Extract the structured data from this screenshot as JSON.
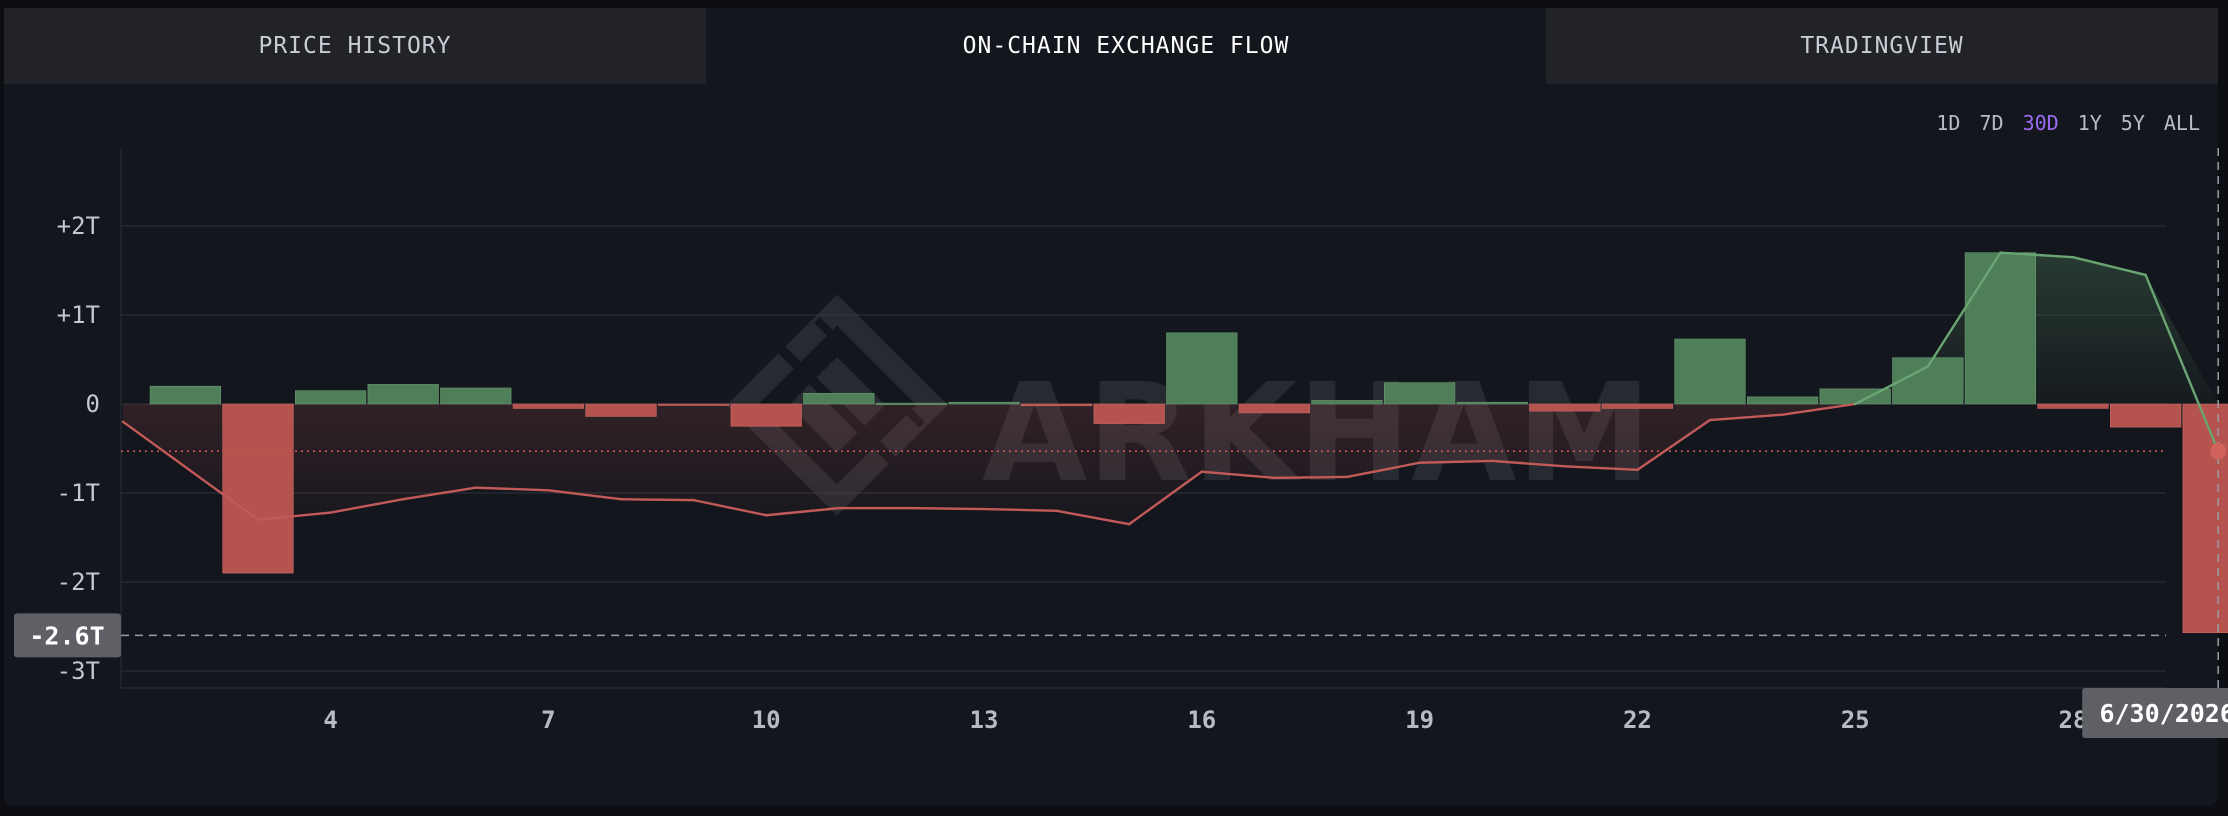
{
  "tabs": [
    {
      "label": "PRICE HISTORY",
      "active": false
    },
    {
      "label": "ON-CHAIN EXCHANGE FLOW",
      "active": true
    },
    {
      "label": "TRADINGVIEW",
      "active": false
    }
  ],
  "ranges": [
    {
      "label": "1D",
      "active": false
    },
    {
      "label": "7D",
      "active": false
    },
    {
      "label": "30D",
      "active": true
    },
    {
      "label": "1Y",
      "active": false
    },
    {
      "label": "5Y",
      "active": false
    },
    {
      "label": "ALL",
      "active": false
    }
  ],
  "watermark": "ARKHAM",
  "colors": {
    "inflow_bar": "#4f7f58",
    "outflow_bar": "#b5534f",
    "line_positive": "#69a572",
    "line_negative": "#c25a57",
    "accent_range": "#9b6bf2"
  },
  "cursor": {
    "y_label": "-2.6T",
    "y_value": -2.6,
    "x_label": "6/30/2026",
    "x_day": 30,
    "line_value": -0.53
  },
  "chart_data": {
    "type": "bar",
    "xlabel": "",
    "ylabel": "",
    "ylim": [
      -3.2,
      2.9
    ],
    "y_ticks": [
      2,
      1,
      0,
      -1,
      -2,
      -3
    ],
    "y_tick_labels": [
      "+2T",
      "+1T",
      "0",
      "-1T",
      "-2T",
      "-3T"
    ],
    "x_ticks": [
      4,
      7,
      10,
      13,
      16,
      19,
      22,
      25,
      28
    ],
    "x_tick_labels": [
      "4",
      "7",
      "10",
      "13",
      "16",
      "19",
      "22",
      "25",
      "28"
    ],
    "grid": true,
    "days": [
      2,
      3,
      4,
      5,
      6,
      7,
      8,
      9,
      10,
      11,
      12,
      13,
      14,
      15,
      16,
      17,
      18,
      19,
      20,
      21,
      22,
      23,
      24,
      25,
      26,
      27,
      28,
      29,
      30
    ],
    "bar_values": [
      0.2,
      -1.9,
      0.15,
      0.22,
      0.18,
      -0.05,
      -0.14,
      -0.01,
      -0.25,
      0.12,
      0.01,
      0.02,
      -0.02,
      -0.22,
      0.8,
      -0.1,
      0.04,
      0.24,
      0.02,
      -0.08,
      -0.05,
      0.73,
      0.08,
      0.17,
      0.52,
      1.7,
      -0.05,
      -0.26,
      -2.57
    ],
    "line_values": [
      -0.2,
      -1.3,
      -1.22,
      -1.07,
      -0.94,
      -0.97,
      -1.07,
      -1.08,
      -1.25,
      -1.17,
      -1.17,
      -1.18,
      -1.2,
      -1.35,
      -0.76,
      -0.83,
      -0.82,
      -0.66,
      -0.64,
      -0.7,
      -0.74,
      -0.18,
      -0.12,
      0.0,
      0.42,
      1.7,
      1.65,
      1.45,
      -0.53
    ],
    "reference_line": -0.53
  }
}
